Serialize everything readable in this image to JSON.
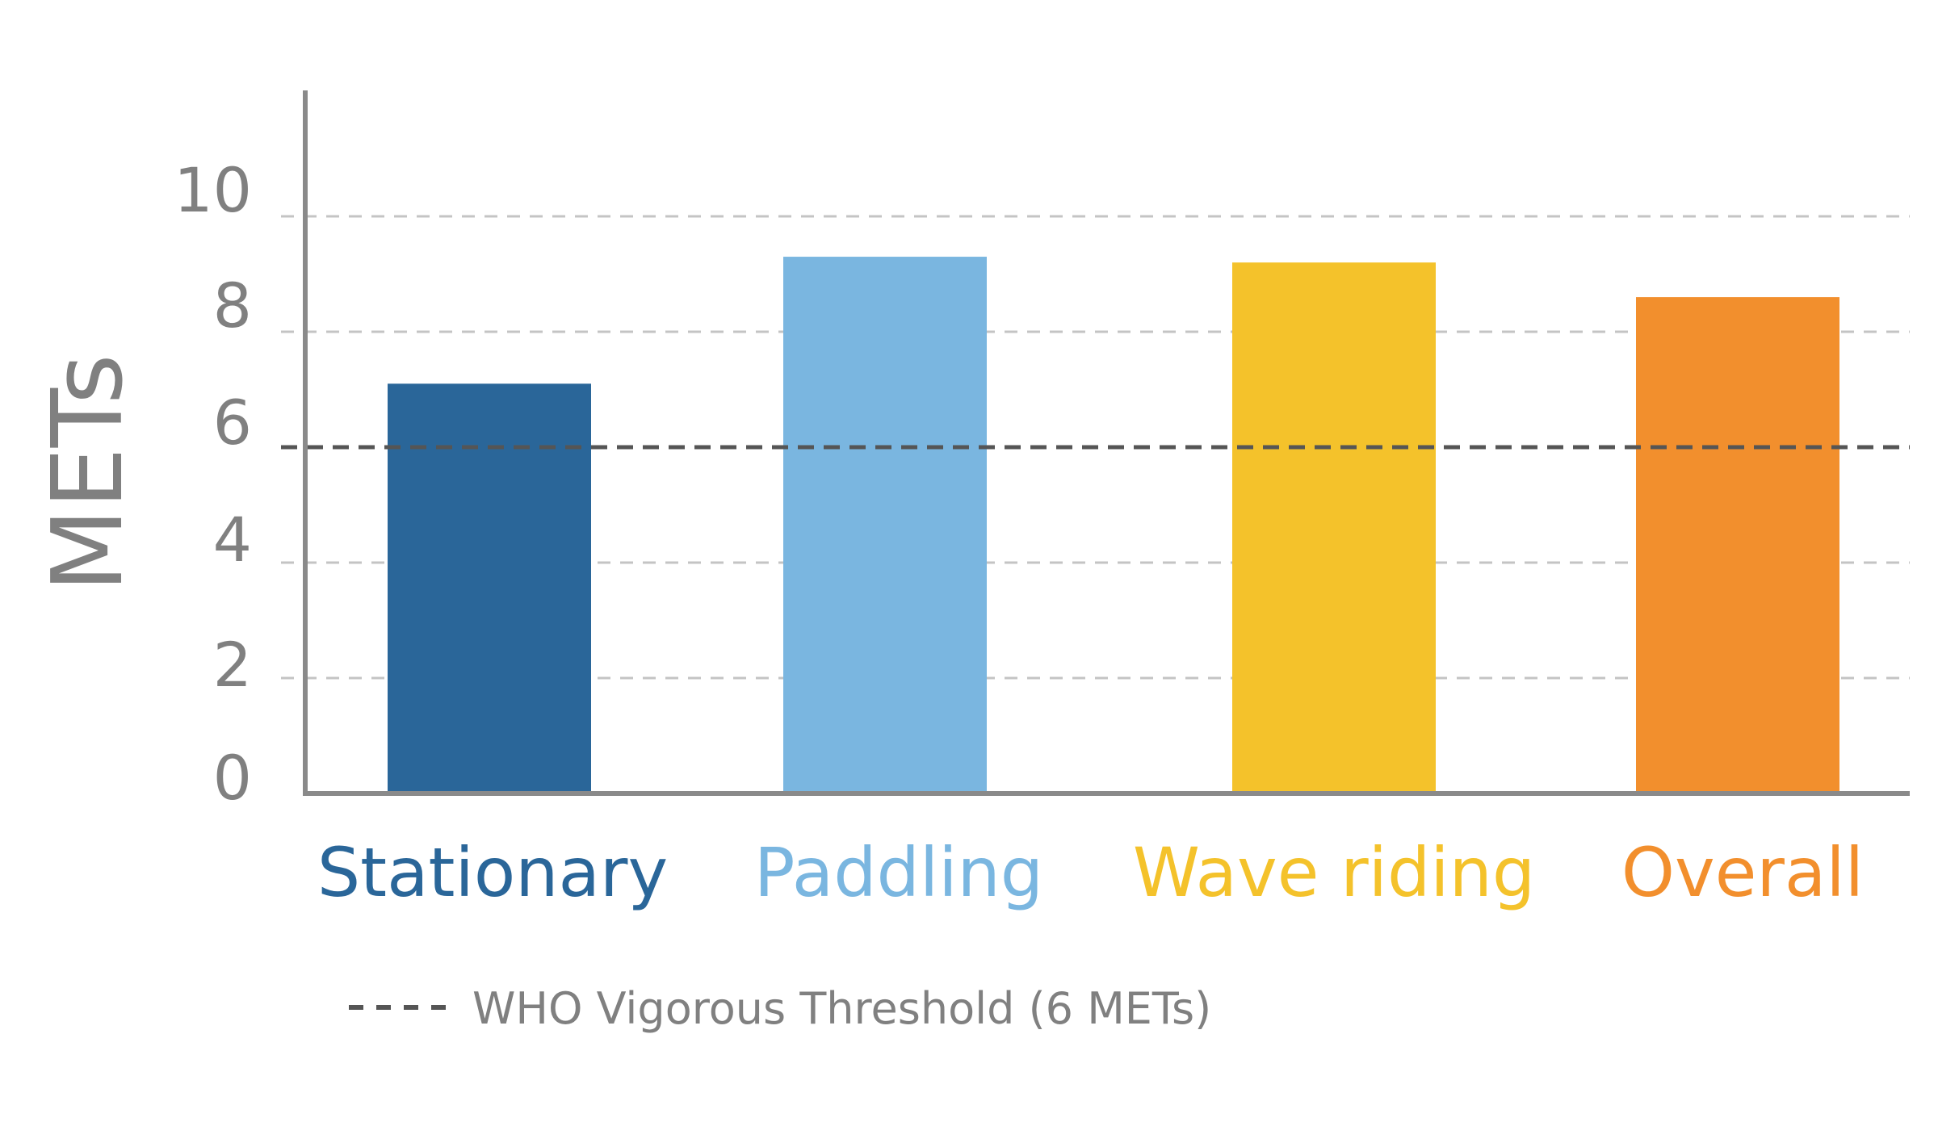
{
  "chart_data": {
    "type": "bar",
    "title": "",
    "xlabel": "",
    "ylabel": "METs",
    "ylim": [
      0,
      12
    ],
    "yticks": [
      "0",
      "2",
      "4",
      "6",
      "8",
      "10"
    ],
    "grid": "horizontal dashed",
    "categories": [
      "Stationary",
      "Paddling",
      "Wave riding",
      "Overall"
    ],
    "values": [
      7.1,
      9.3,
      9.2,
      8.6
    ],
    "colors": [
      "#2a6699",
      "#7ab6e0",
      "#f4c22b",
      "#f28f2d"
    ],
    "reference_line": {
      "value": 6,
      "label": "WHO Vigorous Threshold (6 METs)",
      "color": "#555555",
      "style": "dashed"
    },
    "legend_position": "bottom-left"
  }
}
